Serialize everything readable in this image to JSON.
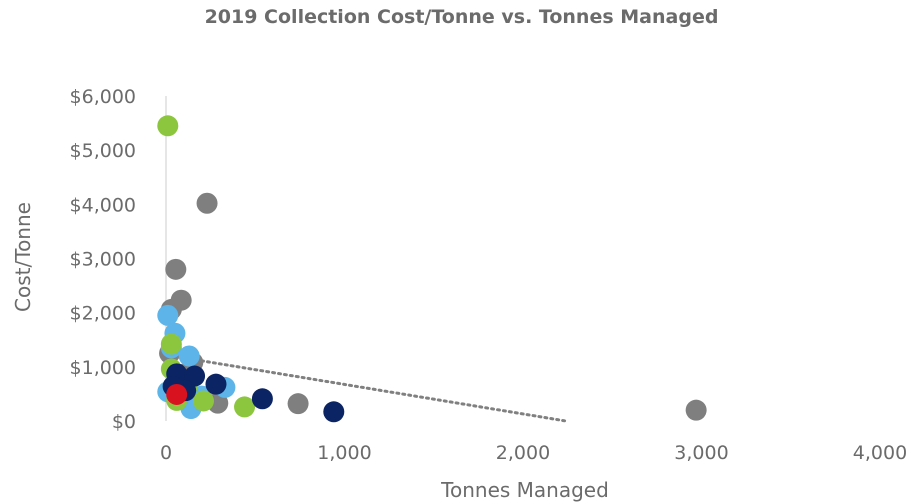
{
  "chart_data": {
    "type": "scatter",
    "title": "2019 Collection Cost/Tonne vs. Tonnes Managed",
    "xlabel": "Tonnes Managed",
    "ylabel": "Cost/Tonne",
    "xlim": [
      0,
      4000
    ],
    "ylim": [
      0,
      6000
    ],
    "x_ticks": [
      0,
      1000,
      2000,
      3000,
      4000
    ],
    "x_tick_labels": [
      "0",
      "1,000",
      "2,000",
      "3,000",
      "4,000"
    ],
    "y_ticks": [
      0,
      1000,
      2000,
      3000,
      4000,
      5000,
      6000
    ],
    "y_tick_labels": [
      "$0",
      "$1,000",
      "$2,000",
      "$3,000",
      "$4,000",
      "$5,000",
      "$6,000"
    ],
    "grid": false,
    "legend": "none",
    "trendline": {
      "style": "dotted",
      "color": "#808080",
      "points": [
        [
          0,
          1220
        ],
        [
          2240,
          0
        ]
      ]
    },
    "series": [
      {
        "color": "#7f7f7f",
        "points": [
          [
            230,
            4020
          ],
          [
            55,
            2800
          ],
          [
            85,
            2230
          ],
          [
            30,
            2060
          ],
          [
            20,
            1250
          ],
          [
            150,
            1080
          ],
          [
            90,
            860
          ],
          [
            290,
            330
          ],
          [
            740,
            320
          ],
          [
            2970,
            200
          ],
          [
            60,
            500
          ],
          [
            110,
            700
          ]
        ]
      },
      {
        "color": "#5cb4e8",
        "points": [
          [
            10,
            1950
          ],
          [
            50,
            1620
          ],
          [
            30,
            1350
          ],
          [
            130,
            1200
          ],
          [
            330,
            620
          ],
          [
            140,
            230
          ],
          [
            10,
            540
          ],
          [
            80,
            480
          ],
          [
            200,
            460
          ],
          [
            60,
            780
          ]
        ]
      },
      {
        "color": "#8cc63f",
        "points": [
          [
            10,
            5450
          ],
          [
            30,
            1420
          ],
          [
            30,
            960
          ],
          [
            60,
            380
          ],
          [
            210,
            370
          ],
          [
            440,
            260
          ],
          [
            120,
            650
          ]
        ]
      },
      {
        "color": "#0b2463",
        "points": [
          [
            60,
            870
          ],
          [
            160,
            830
          ],
          [
            280,
            680
          ],
          [
            540,
            410
          ],
          [
            940,
            170
          ],
          [
            110,
            560
          ],
          [
            40,
            640
          ]
        ]
      },
      {
        "color": "#d9121f",
        "points": [
          [
            60,
            490
          ]
        ]
      }
    ]
  }
}
